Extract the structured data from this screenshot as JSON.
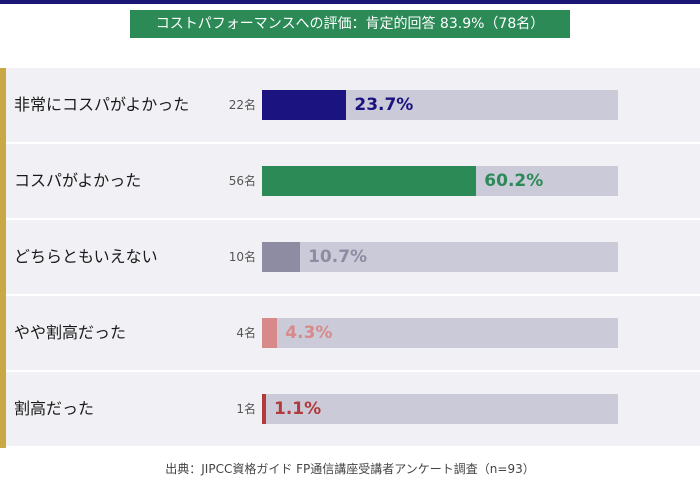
{
  "title": "コストパフォーマンスへの評価：肯定的回答 83.9%（78名）",
  "source": "出典：JIPCC資格ガイド FP通信講座受講者アンケート調査（n=93）",
  "chart_data": {
    "type": "bar",
    "orientation": "horizontal",
    "title": "コストパフォーマンスへの評価：肯定的回答 83.9%（78名）",
    "categories": [
      "非常にコスパがよかった",
      "コスパがよかった",
      "どちらともいえない",
      "やや割高だった",
      "割高だった"
    ],
    "counts": [
      "22名",
      "56名",
      "10名",
      "4名",
      "1名"
    ],
    "values": [
      23.7,
      60.2,
      10.7,
      4.3,
      1.1
    ],
    "value_labels": [
      "23.7%",
      "60.2%",
      "10.7%",
      "4.3%",
      "1.1%"
    ],
    "xlim": [
      0,
      100
    ],
    "colors": [
      "#1a1380",
      "#2b8a56",
      "#8e8ca3",
      "#d88a8a",
      "#b23a3a"
    ],
    "label_colors": [
      "#1a1380",
      "#2b8a56",
      "#8e8ca3",
      "#d88a8a",
      "#b23a3a"
    ],
    "grid": false,
    "legend": "none"
  }
}
